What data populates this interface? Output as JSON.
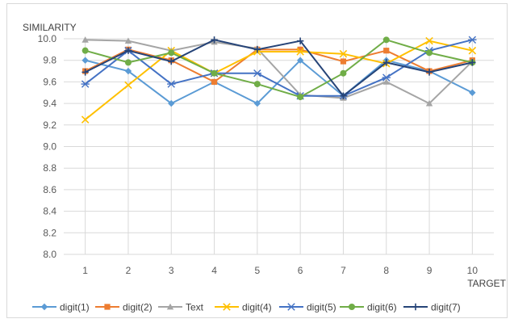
{
  "chart_data": {
    "type": "line",
    "title": "",
    "ylabel": "SIMILARITY",
    "xlabel": "TARGET",
    "categories": [
      "1",
      "2",
      "3",
      "4",
      "5",
      "6",
      "7",
      "8",
      "9",
      "10"
    ],
    "ylim": [
      8.0,
      10.0
    ],
    "yticks": [
      "8.0",
      "8.2",
      "8.4",
      "8.6",
      "8.8",
      "9.0",
      "9.2",
      "9.4",
      "9.6",
      "9.8",
      "10.0"
    ],
    "grid": "horizontal and vertical",
    "legend_position": "bottom",
    "series": [
      {
        "name": "digit(1)",
        "color": "#5b9bd5",
        "marker": "diamond",
        "values": [
          9.8,
          9.7,
          9.4,
          9.6,
          9.4,
          9.8,
          9.47,
          9.8,
          9.7,
          9.5
        ]
      },
      {
        "name": "digit(2)",
        "color": "#ed7d31",
        "marker": "square",
        "values": [
          9.7,
          9.9,
          9.8,
          9.6,
          9.9,
          9.9,
          9.79,
          9.89,
          9.7,
          9.8
        ]
      },
      {
        "name": "Text",
        "color": "#a5a5a5",
        "marker": "triangle",
        "values": [
          9.99,
          9.98,
          9.89,
          9.97,
          9.91,
          9.48,
          9.45,
          9.6,
          9.4,
          9.79
        ]
      },
      {
        "name": "digit(4)",
        "color": "#ffc000",
        "marker": "x",
        "values": [
          9.25,
          9.57,
          9.89,
          9.68,
          9.88,
          9.88,
          9.86,
          9.77,
          9.98,
          9.89
        ]
      },
      {
        "name": "digit(5)",
        "color": "#4472c4",
        "marker": "star",
        "values": [
          9.58,
          9.89,
          9.58,
          9.68,
          9.68,
          9.47,
          9.47,
          9.64,
          9.89,
          9.99
        ]
      },
      {
        "name": "digit(6)",
        "color": "#70ad47",
        "marker": "circle",
        "values": [
          9.89,
          9.78,
          9.87,
          9.68,
          9.58,
          9.46,
          9.68,
          9.99,
          9.87,
          9.78
        ]
      },
      {
        "name": "digit(7)",
        "color": "#264478",
        "marker": "plus",
        "values": [
          9.69,
          9.89,
          9.79,
          9.99,
          9.9,
          9.98,
          9.47,
          9.78,
          9.69,
          9.78
        ]
      }
    ]
  }
}
